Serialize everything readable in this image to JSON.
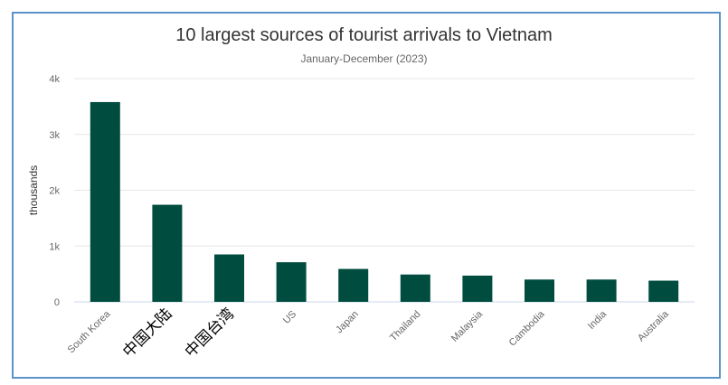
{
  "chart_data": {
    "type": "bar",
    "title": "10 largest sources of tourist arrivals to Vietnam",
    "subtitle": "January-December (2023)",
    "ylabel": "thousands",
    "xlabel": "",
    "ylim": [
      0,
      4000
    ],
    "yticks": [
      0,
      1000,
      2000,
      3000,
      4000
    ],
    "ytick_labels": [
      "0",
      "1k",
      "2k",
      "3k",
      "4k"
    ],
    "grid": true,
    "legend": "none",
    "bar_color": "#004d40",
    "categories": [
      "South Korea",
      "中国大陆",
      "中国台湾",
      "US",
      "Japan",
      "Thailand",
      "Malaysia",
      "Cambodia",
      "India",
      "Australia"
    ],
    "values": [
      3580,
      1740,
      850,
      710,
      590,
      490,
      470,
      400,
      400,
      380
    ]
  }
}
